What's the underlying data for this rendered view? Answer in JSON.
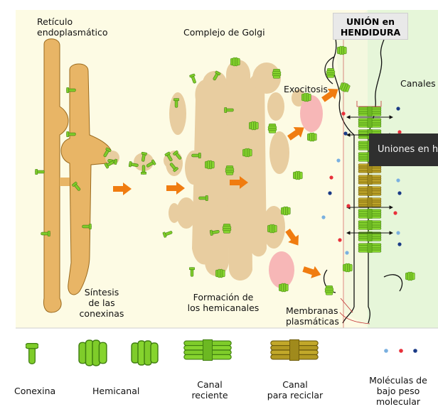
{
  "labels": {
    "er": "Retículo endoplasmático",
    "er_line1": "Retículo",
    "er_line2": "endoplasmático",
    "golgi": "Complejo de Golgi",
    "junction_line1": "UNIÓN en",
    "junction_line2": "HENDIDURA",
    "exocytosis": "Exocitosis",
    "channels": "Canales",
    "synthesis_line1": "Síntesis",
    "synthesis_line2": "de las",
    "synthesis_line3": "conexinas",
    "formation_line1": "Formación de",
    "formation_line2": "los hemicanales",
    "membranes_line1": "Membranas",
    "membranes_line2": "plasmáticas"
  },
  "tooltip": {
    "text": "Uniones en h"
  },
  "legend": {
    "connexin": "Conexina",
    "hemichannel": "Hemicanal",
    "recent_line1": "Canal",
    "recent_line2": "reciente",
    "recycle_line1": "Canal",
    "recycle_line2": "para reciclar",
    "molecules_line1": "Moléculas de",
    "molecules_line2": "bajo peso",
    "molecules_line3": "molecular"
  },
  "colors": {
    "cytoplasm": "#fdfbe4",
    "extracellular": "#e6f6d9",
    "er": "#e8b566",
    "golgi": "#e8cda0",
    "connexin": "#7fcc2a",
    "recycle": "#b39a22",
    "arrow": "#f07c10",
    "vesicle": "#f7b7b7",
    "molecule_red": "#e8303a",
    "molecule_blue": "#1a3a86",
    "molecule_light": "#7ab0e0"
  }
}
